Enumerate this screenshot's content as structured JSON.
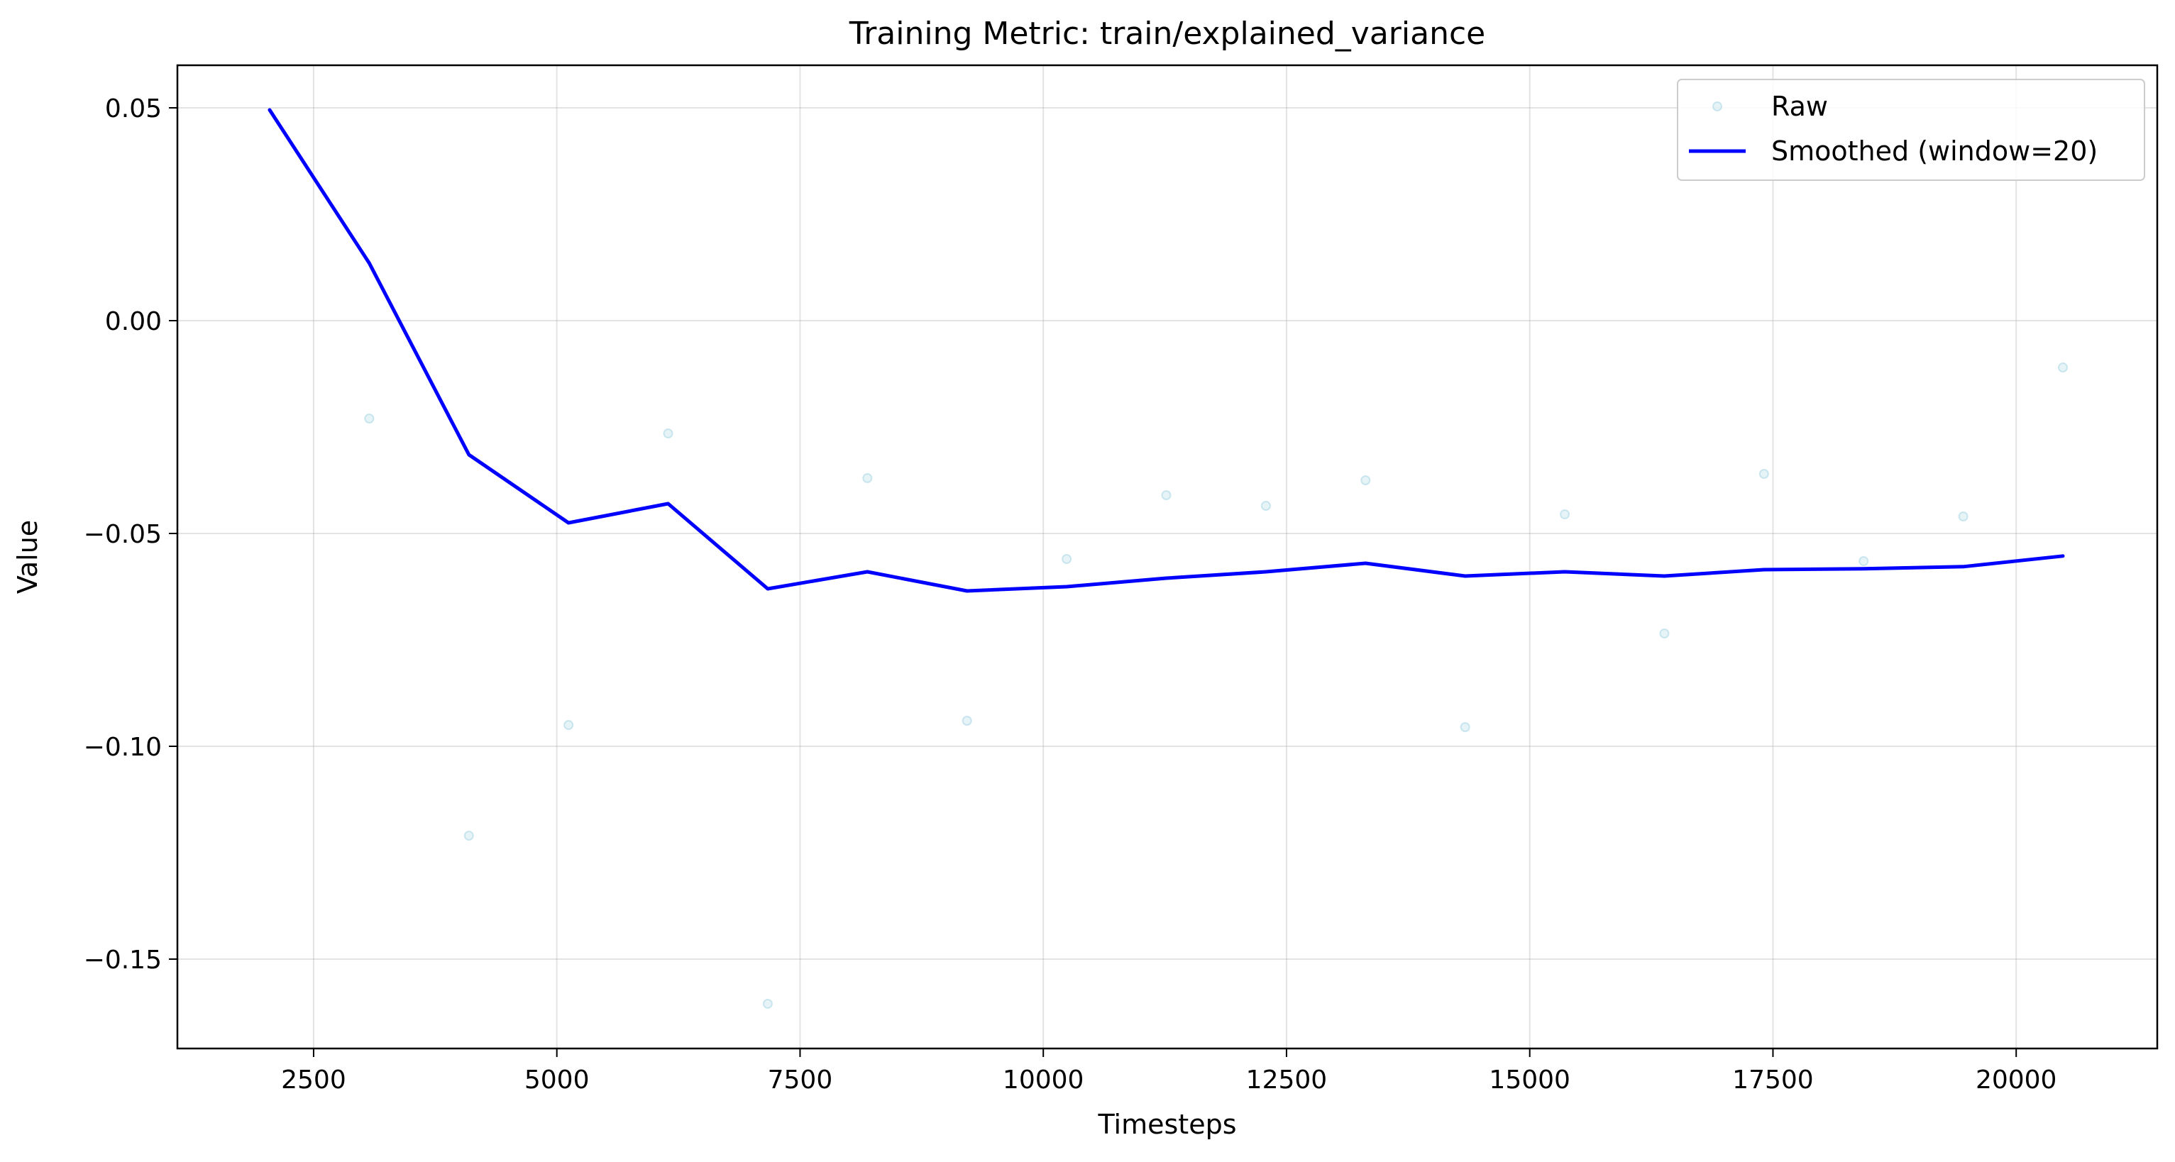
{
  "chart_data": {
    "type": "line",
    "title": "Training Metric: train/explained_variance",
    "xlabel": "Timesteps",
    "ylabel": "Value",
    "xlim": [
      1100,
      21450
    ],
    "ylim": [
      -0.171,
      0.06
    ],
    "x_ticks": [
      2500,
      5000,
      7500,
      10000,
      12500,
      15000,
      17500,
      20000
    ],
    "x_tick_labels": [
      "2500",
      "5000",
      "7500",
      "10000",
      "12500",
      "15000",
      "17500",
      "20000"
    ],
    "y_ticks": [
      0.05,
      0.0,
      -0.05,
      -0.1,
      -0.15
    ],
    "y_tick_labels": [
      "0.05",
      "0.00",
      "−0.05",
      "−0.10",
      "−0.15"
    ],
    "grid": true,
    "legend_position": "top-right",
    "series": [
      {
        "name": "Raw",
        "style": "scatter",
        "color": "#add8e6",
        "x": [
          3072,
          4096,
          5120,
          6144,
          7168,
          8192,
          9216,
          10240,
          11264,
          12288,
          13312,
          14336,
          15360,
          16384,
          17408,
          18432,
          19456,
          20480
        ],
        "values": [
          -0.023,
          -0.121,
          -0.095,
          -0.0265,
          -0.1605,
          -0.037,
          -0.094,
          -0.056,
          -0.041,
          -0.0435,
          -0.0375,
          -0.0955,
          -0.0455,
          -0.0735,
          -0.036,
          -0.0565,
          -0.046,
          -0.011
        ]
      },
      {
        "name": "Smoothed (window=20)",
        "style": "line",
        "color": "#0000ff",
        "x": [
          2048,
          3072,
          4096,
          5120,
          6144,
          7168,
          8192,
          9216,
          10240,
          11264,
          12288,
          13312,
          14336,
          15360,
          16384,
          17408,
          18432,
          19456,
          20480
        ],
        "values": [
          0.0495,
          0.0135,
          -0.0315,
          -0.0475,
          -0.043,
          -0.063,
          -0.059,
          -0.0635,
          -0.0625,
          -0.0605,
          -0.059,
          -0.057,
          -0.06,
          -0.059,
          -0.06,
          -0.0585,
          -0.0583,
          -0.0578,
          -0.0553
        ]
      }
    ]
  }
}
